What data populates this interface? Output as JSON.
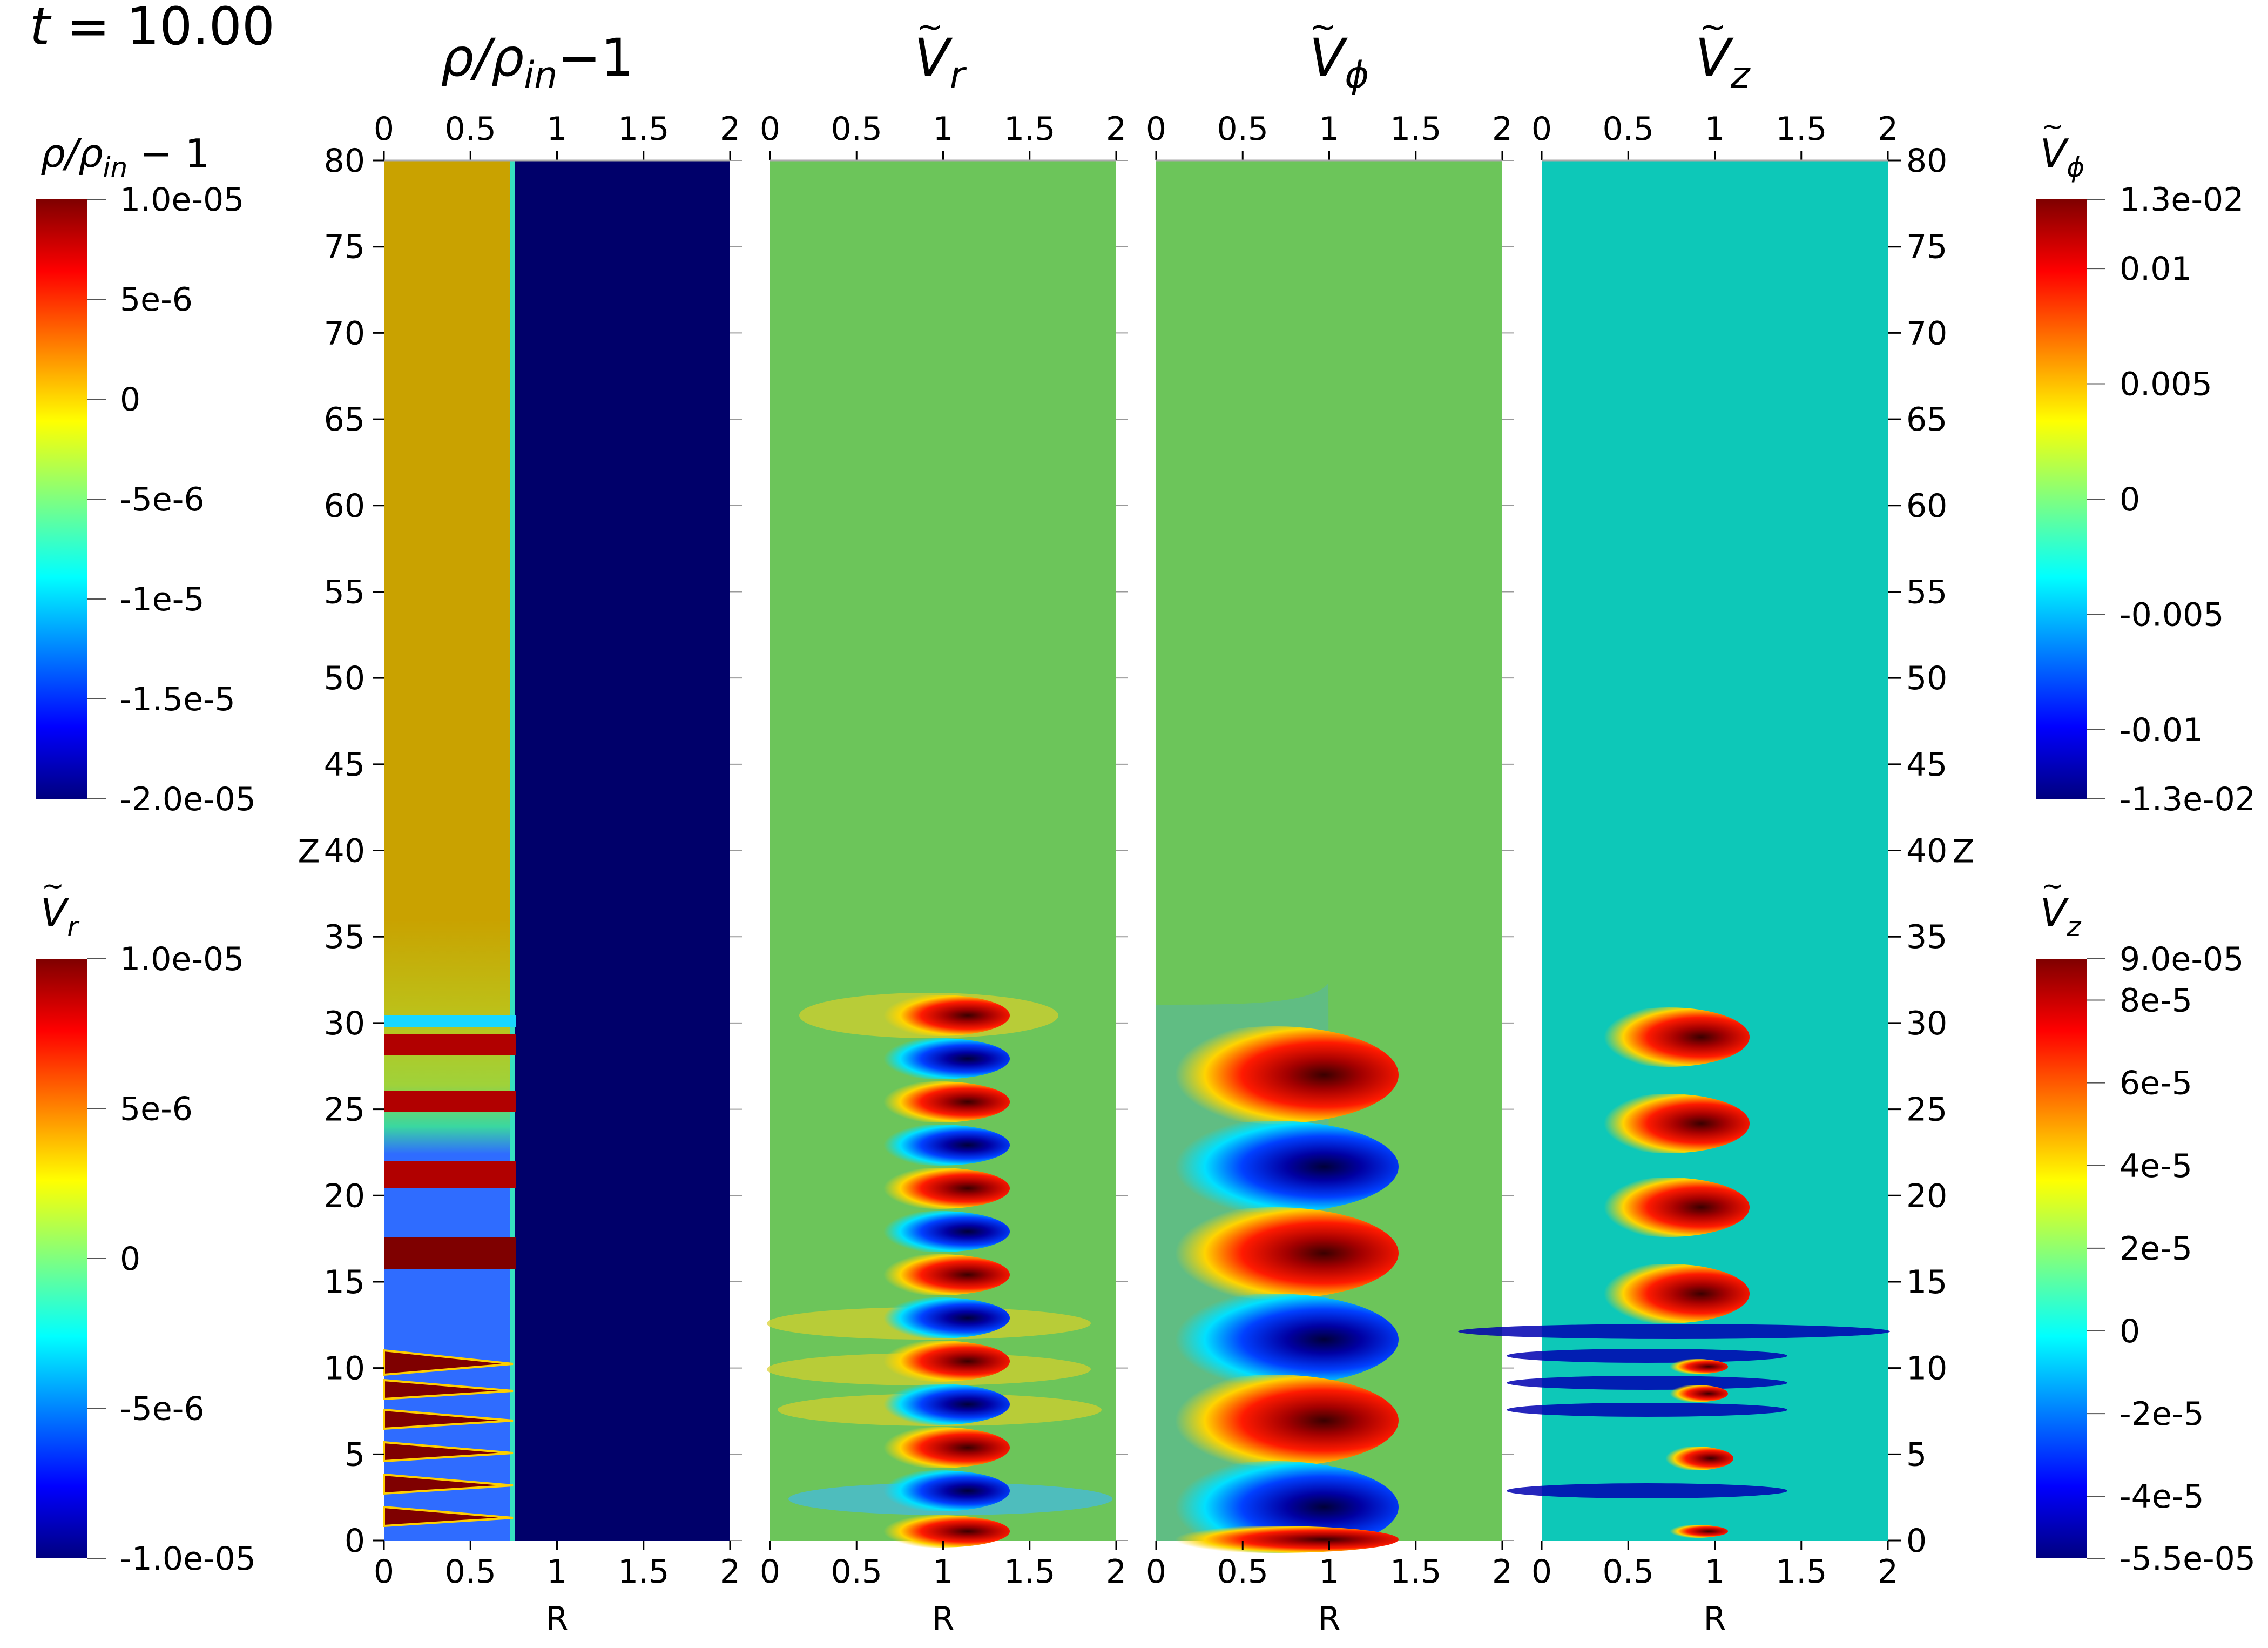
{
  "time_label": {
    "t": "t",
    "value": " = 10.00"
  },
  "chart_data": {
    "type": "heatmap",
    "panels": [
      {
        "id": "rho",
        "title": {
          "base": "ρ/ρ",
          "sub": "in",
          "tail": "−1"
        }
      },
      {
        "id": "vr",
        "title": {
          "base": "V",
          "sub": "r"
        }
      },
      {
        "id": "vphi",
        "title": {
          "base": "V",
          "sub": "ϕ"
        }
      },
      {
        "id": "vz",
        "title": {
          "base": "V",
          "sub": "z"
        }
      }
    ],
    "x_axis": {
      "label": "R",
      "range": [
        0,
        2
      ],
      "ticks": [
        "0",
        "0.5",
        "1",
        "1.5",
        "2"
      ]
    },
    "z_axis": {
      "label": "Z",
      "range": [
        0,
        80
      ],
      "ticks": [
        "0",
        "5",
        "10",
        "15",
        "20",
        "25",
        "30",
        "35",
        "40",
        "45",
        "50",
        "55",
        "60",
        "65",
        "70",
        "75",
        "80"
      ]
    },
    "colorbars": [
      {
        "id": "cb-rho",
        "title": "ρ/ρin − 1",
        "title_parts": {
          "a": "ρ/ρ",
          "sub": "in",
          "b": " − 1"
        },
        "max": 1e-05,
        "min": -2e-05,
        "ticks": [
          {
            "v": 1e-05,
            "label": "1.0e-05"
          },
          {
            "v": 5e-06,
            "label": "5e-6"
          },
          {
            "v": 0,
            "label": "0"
          },
          {
            "v": -5e-06,
            "label": "-5e-6"
          },
          {
            "v": -1e-05,
            "label": "-1e-5"
          },
          {
            "v": -1.5e-05,
            "label": "-1.5e-5"
          },
          {
            "v": -2e-05,
            "label": "-2.0e-05"
          }
        ]
      },
      {
        "id": "cb-vr",
        "title": "Vr",
        "title_parts": {
          "a": "V",
          "sub": "r"
        },
        "max": 1e-05,
        "min": -1e-05,
        "ticks": [
          {
            "v": 1e-05,
            "label": "1.0e-05"
          },
          {
            "v": 5e-06,
            "label": "5e-6"
          },
          {
            "v": 0,
            "label": "0"
          },
          {
            "v": -5e-06,
            "label": "-5e-6"
          },
          {
            "v": -1e-05,
            "label": "-1.0e-05"
          }
        ]
      },
      {
        "id": "cb-vphi",
        "title": "Vϕ",
        "title_parts": {
          "a": "V",
          "sub": "ϕ"
        },
        "max": 0.013,
        "min": -0.013,
        "ticks": [
          {
            "v": 0.013,
            "label": "1.3e-02"
          },
          {
            "v": 0.01,
            "label": "0.01"
          },
          {
            "v": 0.005,
            "label": "0.005"
          },
          {
            "v": 0,
            "label": "0"
          },
          {
            "v": -0.005,
            "label": "-0.005"
          },
          {
            "v": -0.01,
            "label": "-0.01"
          },
          {
            "v": -0.013,
            "label": "-1.3e-02"
          }
        ]
      },
      {
        "id": "cb-vz",
        "title": "Vz",
        "title_parts": {
          "a": "V",
          "sub": "z"
        },
        "max": 9e-05,
        "min": -5.5e-05,
        "ticks": [
          {
            "v": 9e-05,
            "label": "9.0e-05"
          },
          {
            "v": 8e-05,
            "label": "8e-5"
          },
          {
            "v": 6e-05,
            "label": "6e-5"
          },
          {
            "v": 4e-05,
            "label": "4e-5"
          },
          {
            "v": 2e-05,
            "label": "2e-5"
          },
          {
            "v": 0,
            "label": "0"
          },
          {
            "v": -2e-05,
            "label": "-2e-5"
          },
          {
            "v": -4e-05,
            "label": "-4e-5"
          },
          {
            "v": -5.5e-05,
            "label": "-5.5e-05"
          }
        ]
      }
    ],
    "colormap": [
      "#00007f",
      "#0000ff",
      "#00ffff",
      "#ffff00",
      "#ff0000",
      "#7f0000"
    ]
  }
}
